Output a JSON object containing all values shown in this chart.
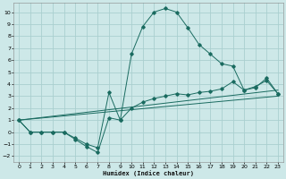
{
  "xlabel": "Humidex (Indice chaleur)",
  "bg_color": "#cde8e8",
  "grid_color": "#aacfcf",
  "line_color": "#1a6b60",
  "xlim": [
    -0.5,
    23.5
  ],
  "ylim": [
    -2.5,
    10.8
  ],
  "xticks": [
    0,
    1,
    2,
    3,
    4,
    5,
    6,
    7,
    8,
    9,
    10,
    11,
    12,
    13,
    14,
    15,
    16,
    17,
    18,
    19,
    20,
    21,
    22,
    23
  ],
  "yticks": [
    -2,
    -1,
    0,
    1,
    2,
    3,
    4,
    5,
    6,
    7,
    8,
    9,
    10
  ],
  "curve1_x": [
    0,
    1,
    2,
    3,
    4,
    5,
    6,
    7,
    8,
    9,
    10,
    11,
    12,
    13,
    14,
    15,
    16,
    17,
    18,
    19,
    20,
    21,
    22,
    23
  ],
  "curve1_y": [
    1.0,
    0.0,
    0.0,
    0.0,
    0.0,
    -0.6,
    -1.2,
    -1.7,
    1.2,
    1.0,
    6.5,
    8.8,
    10.0,
    10.3,
    10.0,
    8.7,
    7.3,
    6.5,
    5.7,
    5.5,
    3.5,
    3.7,
    4.5,
    3.2
  ],
  "curve2_x": [
    0,
    1,
    2,
    3,
    4,
    5,
    6,
    7,
    8,
    9,
    10,
    11,
    12,
    13,
    14,
    15,
    16,
    17,
    18,
    19,
    20,
    21,
    22,
    23
  ],
  "curve2_y": [
    1.0,
    0.0,
    0.0,
    0.0,
    0.0,
    -0.5,
    -1.0,
    -1.3,
    3.3,
    1.0,
    2.0,
    2.5,
    2.8,
    3.0,
    3.2,
    3.1,
    3.3,
    3.4,
    3.6,
    4.2,
    3.5,
    3.8,
    4.3,
    3.2
  ],
  "line3_x": [
    0,
    23
  ],
  "line3_y": [
    1.0,
    3.0
  ],
  "line4_x": [
    0,
    23
  ],
  "line4_y": [
    1.0,
    3.5
  ]
}
